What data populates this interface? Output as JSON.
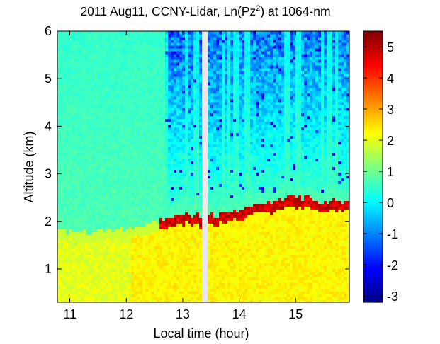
{
  "chart_data": {
    "type": "heatmap",
    "title": "2011 Aug11, CCNY-Lidar, Ln(Pz",
    "title_superscript": "2",
    "title_suffix": ") at 1064-nm",
    "xlabel": "Local time (hour)",
    "ylabel": "Altitude (km)",
    "xlim": [
      10.78,
      15.95
    ],
    "ylim": [
      0.3,
      6.0
    ],
    "x_ticks": [
      11,
      12,
      13,
      14,
      15
    ],
    "x_tick_labels": [
      "11",
      "12",
      "13",
      "14",
      "15"
    ],
    "y_ticks": [
      1,
      2,
      3,
      4,
      5,
      6
    ],
    "y_tick_labels": [
      "1",
      "2",
      "3",
      "4",
      "5",
      "6"
    ],
    "colorbar": {
      "range": [
        -3.2,
        5.5
      ],
      "ticks": [
        -3,
        -2,
        -1,
        0,
        1,
        2,
        3,
        4,
        5
      ],
      "tick_labels": [
        "-3",
        "-2",
        "-1",
        "0",
        "1",
        "2",
        "3",
        "4",
        "5"
      ],
      "colormap": "jet"
    },
    "data_gap": {
      "start": 13.35,
      "end": 13.42
    },
    "description_fields": {
      "free_troposphere_value": 0.7,
      "boundary_layer_value": 2.0,
      "boundary_layer_top_value": 5.3,
      "noise_value_min": -2.5
    },
    "boundary_layer_top_km": [
      {
        "t": 10.78,
        "h": 1.72
      },
      {
        "t": 11.5,
        "h": 1.7
      },
      {
        "t": 12.0,
        "h": 1.78
      },
      {
        "t": 12.5,
        "h": 1.92
      },
      {
        "t": 12.75,
        "h": 2.05
      },
      {
        "t": 13.0,
        "h": 2.1
      },
      {
        "t": 13.3,
        "h": 2.05
      },
      {
        "t": 13.6,
        "h": 2.05
      },
      {
        "t": 14.0,
        "h": 2.2
      },
      {
        "t": 14.3,
        "h": 2.3
      },
      {
        "t": 14.6,
        "h": 2.35
      },
      {
        "t": 14.9,
        "h": 2.45
      },
      {
        "t": 15.2,
        "h": 2.4
      },
      {
        "t": 15.5,
        "h": 2.35
      },
      {
        "t": 15.8,
        "h": 2.35
      },
      {
        "t": 15.95,
        "h": 2.4
      }
    ]
  }
}
